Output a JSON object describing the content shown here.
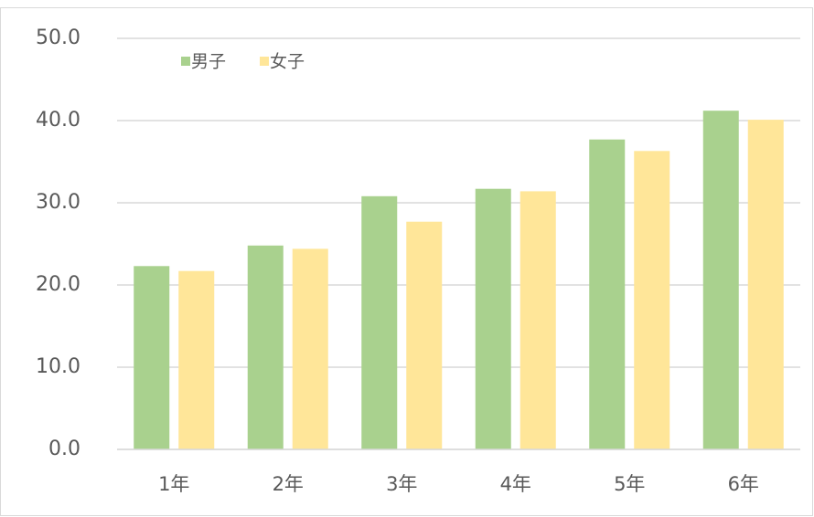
{
  "chart_data": {
    "type": "bar",
    "categories": [
      "1年",
      "2年",
      "3年",
      "4年",
      "5年",
      "6年"
    ],
    "series": [
      {
        "name": "男子",
        "color": "#a9d18e",
        "values": [
          22.3,
          24.8,
          30.8,
          31.7,
          37.7,
          41.2
        ]
      },
      {
        "name": "女子",
        "color": "#ffe699",
        "values": [
          21.7,
          24.4,
          27.7,
          31.4,
          36.3,
          40.1
        ]
      }
    ],
    "ylim": [
      0,
      50
    ],
    "yticks": [
      {
        "value": 0,
        "label": "0.0"
      },
      {
        "value": 10,
        "label": "10.0"
      },
      {
        "value": 20,
        "label": "20.0"
      },
      {
        "value": 30,
        "label": "30.0"
      },
      {
        "value": 40,
        "label": "40.0"
      },
      {
        "value": 50,
        "label": "50.0"
      }
    ],
    "grid": true,
    "legend": "top-left"
  }
}
